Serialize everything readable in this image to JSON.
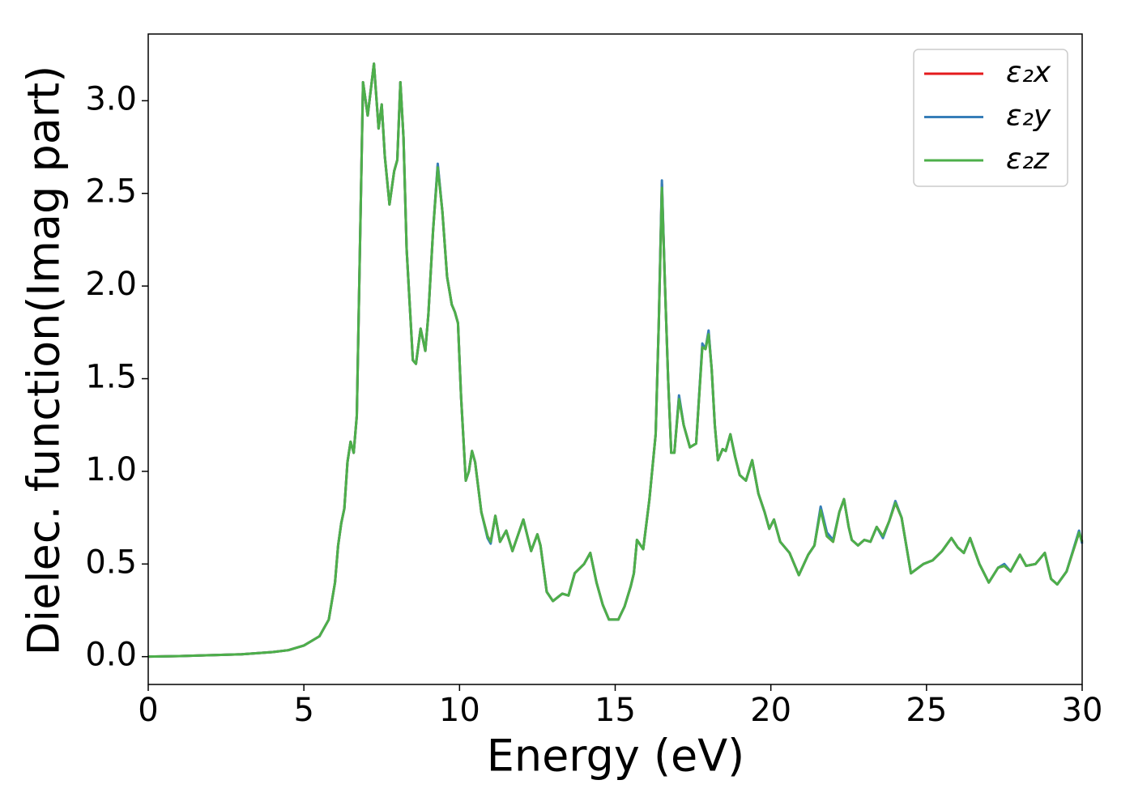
{
  "chart_data": {
    "type": "line",
    "xlabel": "Energy (eV)",
    "ylabel": "Dielec. function(Imag part)",
    "x": [
      0,
      1,
      2,
      3,
      4,
      4.5,
      5,
      5.5,
      5.8,
      6,
      6.1,
      6.2,
      6.3,
      6.4,
      6.5,
      6.6,
      6.7,
      6.8,
      6.9,
      7.05,
      7.25,
      7.4,
      7.5,
      7.6,
      7.75,
      7.9,
      8,
      8.1,
      8.2,
      8.3,
      8.5,
      8.6,
      8.75,
      8.9,
      9,
      9.15,
      9.3,
      9.45,
      9.6,
      9.75,
      9.85,
      9.95,
      10.05,
      10.2,
      10.3,
      10.4,
      10.5,
      10.7,
      10.9,
      11,
      11.15,
      11.3,
      11.5,
      11.7,
      12.05,
      12.3,
      12.5,
      12.6,
      12.8,
      13,
      13.3,
      13.5,
      13.7,
      14,
      14.2,
      14.4,
      14.6,
      14.8,
      15.1,
      15.3,
      15.5,
      15.6,
      15.7,
      15.9,
      16.1,
      16.3,
      16.4,
      16.5,
      16.6,
      16.7,
      16.8,
      16.9,
      17.05,
      17.2,
      17.4,
      17.6,
      17.8,
      17.9,
      18,
      18.1,
      18.2,
      18.3,
      18.45,
      18.55,
      18.7,
      18.85,
      19,
      19.2,
      19.4,
      19.6,
      19.8,
      19.95,
      20.1,
      20.3,
      20.6,
      20.9,
      21.2,
      21.4,
      21.6,
      21.8,
      22,
      22.2,
      22.35,
      22.5,
      22.6,
      22.8,
      23,
      23.2,
      23.4,
      23.6,
      23.8,
      24,
      24.2,
      24.5,
      24.9,
      25.2,
      25.5,
      25.8,
      26,
      26.2,
      26.4,
      26.7,
      27,
      27.3,
      27.5,
      27.7,
      28,
      28.2,
      28.5,
      28.8,
      29,
      29.2,
      29.5,
      29.9,
      30
    ],
    "series": [
      {
        "name": "ε₂x",
        "color": "#e41a1c",
        "values": [
          0,
          0.003,
          0.008,
          0.013,
          0.025,
          0.035,
          0.06,
          0.11,
          0.2,
          0.4,
          0.6,
          0.72,
          0.8,
          1.05,
          1.16,
          1.1,
          1.3,
          2.2,
          3.1,
          2.92,
          3.2,
          2.85,
          2.98,
          2.7,
          2.44,
          2.62,
          2.68,
          3.1,
          2.8,
          2.2,
          1.6,
          1.58,
          1.77,
          1.65,
          1.85,
          2.3,
          2.65,
          2.4,
          2.05,
          1.9,
          1.86,
          1.8,
          1.4,
          0.95,
          1.0,
          1.11,
          1.05,
          0.78,
          0.65,
          0.62,
          0.76,
          0.62,
          0.68,
          0.57,
          0.74,
          0.57,
          0.66,
          0.6,
          0.35,
          0.3,
          0.34,
          0.33,
          0.45,
          0.5,
          0.56,
          0.4,
          0.28,
          0.2,
          0.2,
          0.27,
          0.38,
          0.45,
          0.63,
          0.58,
          0.85,
          1.2,
          1.8,
          2.55,
          2.0,
          1.5,
          1.1,
          1.1,
          1.4,
          1.25,
          1.13,
          1.15,
          1.68,
          1.66,
          1.75,
          1.55,
          1.25,
          1.06,
          1.12,
          1.11,
          1.2,
          1.08,
          0.98,
          0.95,
          1.06,
          0.88,
          0.78,
          0.69,
          0.74,
          0.62,
          0.56,
          0.44,
          0.55,
          0.6,
          0.8,
          0.65,
          0.62,
          0.78,
          0.85,
          0.7,
          0.63,
          0.6,
          0.63,
          0.62,
          0.7,
          0.65,
          0.73,
          0.83,
          0.75,
          0.45,
          0.5,
          0.52,
          0.57,
          0.64,
          0.59,
          0.56,
          0.64,
          0.5,
          0.4,
          0.48,
          0.49,
          0.46,
          0.55,
          0.49,
          0.5,
          0.56,
          0.42,
          0.39,
          0.46,
          0.67,
          0.62
        ]
      },
      {
        "name": "ε₂y",
        "color": "#377eb8",
        "values": [
          0,
          0.003,
          0.008,
          0.013,
          0.025,
          0.035,
          0.06,
          0.11,
          0.2,
          0.4,
          0.6,
          0.72,
          0.8,
          1.05,
          1.16,
          1.1,
          1.3,
          2.2,
          3.1,
          2.92,
          3.2,
          2.85,
          2.98,
          2.7,
          2.44,
          2.62,
          2.68,
          3.1,
          2.8,
          2.2,
          1.6,
          1.58,
          1.77,
          1.65,
          1.85,
          2.3,
          2.66,
          2.4,
          2.05,
          1.9,
          1.86,
          1.8,
          1.4,
          0.95,
          1.0,
          1.11,
          1.05,
          0.78,
          0.64,
          0.61,
          0.76,
          0.62,
          0.68,
          0.57,
          0.74,
          0.57,
          0.66,
          0.6,
          0.35,
          0.3,
          0.34,
          0.33,
          0.45,
          0.5,
          0.56,
          0.4,
          0.28,
          0.2,
          0.2,
          0.27,
          0.38,
          0.45,
          0.63,
          0.58,
          0.85,
          1.2,
          1.8,
          2.57,
          2.0,
          1.5,
          1.1,
          1.1,
          1.41,
          1.25,
          1.13,
          1.15,
          1.69,
          1.66,
          1.76,
          1.55,
          1.25,
          1.06,
          1.12,
          1.11,
          1.2,
          1.08,
          0.98,
          0.95,
          1.06,
          0.88,
          0.78,
          0.69,
          0.74,
          0.62,
          0.56,
          0.44,
          0.55,
          0.6,
          0.81,
          0.67,
          0.63,
          0.78,
          0.85,
          0.7,
          0.63,
          0.6,
          0.63,
          0.62,
          0.7,
          0.64,
          0.73,
          0.84,
          0.75,
          0.45,
          0.5,
          0.52,
          0.57,
          0.64,
          0.59,
          0.56,
          0.64,
          0.5,
          0.4,
          0.48,
          0.5,
          0.46,
          0.55,
          0.49,
          0.5,
          0.56,
          0.42,
          0.39,
          0.46,
          0.68,
          0.61
        ]
      },
      {
        "name": "ε₂z",
        "color": "#4daf4a",
        "values": [
          0,
          0.003,
          0.008,
          0.013,
          0.025,
          0.035,
          0.06,
          0.11,
          0.2,
          0.4,
          0.6,
          0.72,
          0.8,
          1.05,
          1.16,
          1.1,
          1.3,
          2.2,
          3.1,
          2.92,
          3.2,
          2.85,
          2.98,
          2.7,
          2.44,
          2.62,
          2.68,
          3.1,
          2.8,
          2.2,
          1.6,
          1.58,
          1.77,
          1.65,
          1.85,
          2.3,
          2.64,
          2.4,
          2.05,
          1.9,
          1.86,
          1.8,
          1.4,
          0.95,
          1.0,
          1.11,
          1.05,
          0.78,
          0.65,
          0.62,
          0.76,
          0.62,
          0.68,
          0.57,
          0.74,
          0.57,
          0.66,
          0.6,
          0.35,
          0.3,
          0.34,
          0.33,
          0.45,
          0.5,
          0.56,
          0.4,
          0.28,
          0.2,
          0.2,
          0.27,
          0.38,
          0.45,
          0.63,
          0.58,
          0.85,
          1.2,
          1.8,
          2.53,
          2.0,
          1.5,
          1.1,
          1.1,
          1.39,
          1.25,
          1.13,
          1.15,
          1.67,
          1.66,
          1.74,
          1.55,
          1.25,
          1.06,
          1.12,
          1.11,
          1.2,
          1.08,
          0.98,
          0.95,
          1.06,
          0.88,
          0.78,
          0.69,
          0.74,
          0.62,
          0.56,
          0.44,
          0.55,
          0.6,
          0.79,
          0.65,
          0.62,
          0.78,
          0.85,
          0.7,
          0.63,
          0.6,
          0.63,
          0.62,
          0.7,
          0.65,
          0.73,
          0.83,
          0.75,
          0.45,
          0.5,
          0.52,
          0.57,
          0.64,
          0.59,
          0.56,
          0.64,
          0.5,
          0.4,
          0.48,
          0.49,
          0.46,
          0.55,
          0.49,
          0.5,
          0.56,
          0.42,
          0.39,
          0.46,
          0.67,
          0.62
        ]
      }
    ],
    "xlim": [
      0,
      30
    ],
    "xticks": [
      0,
      5,
      10,
      15,
      20,
      25,
      30
    ],
    "ylim": [
      -0.15,
      3.36
    ],
    "yticks": [
      {
        "value": 0,
        "label": "0.0"
      },
      0.5,
      {
        "value": 1,
        "label": "1.0"
      },
      1.5,
      {
        "value": 2,
        "label": "2.0"
      },
      2.5,
      {
        "value": 3,
        "label": "3.0"
      }
    ],
    "grid": false,
    "legend": "upper right"
  }
}
